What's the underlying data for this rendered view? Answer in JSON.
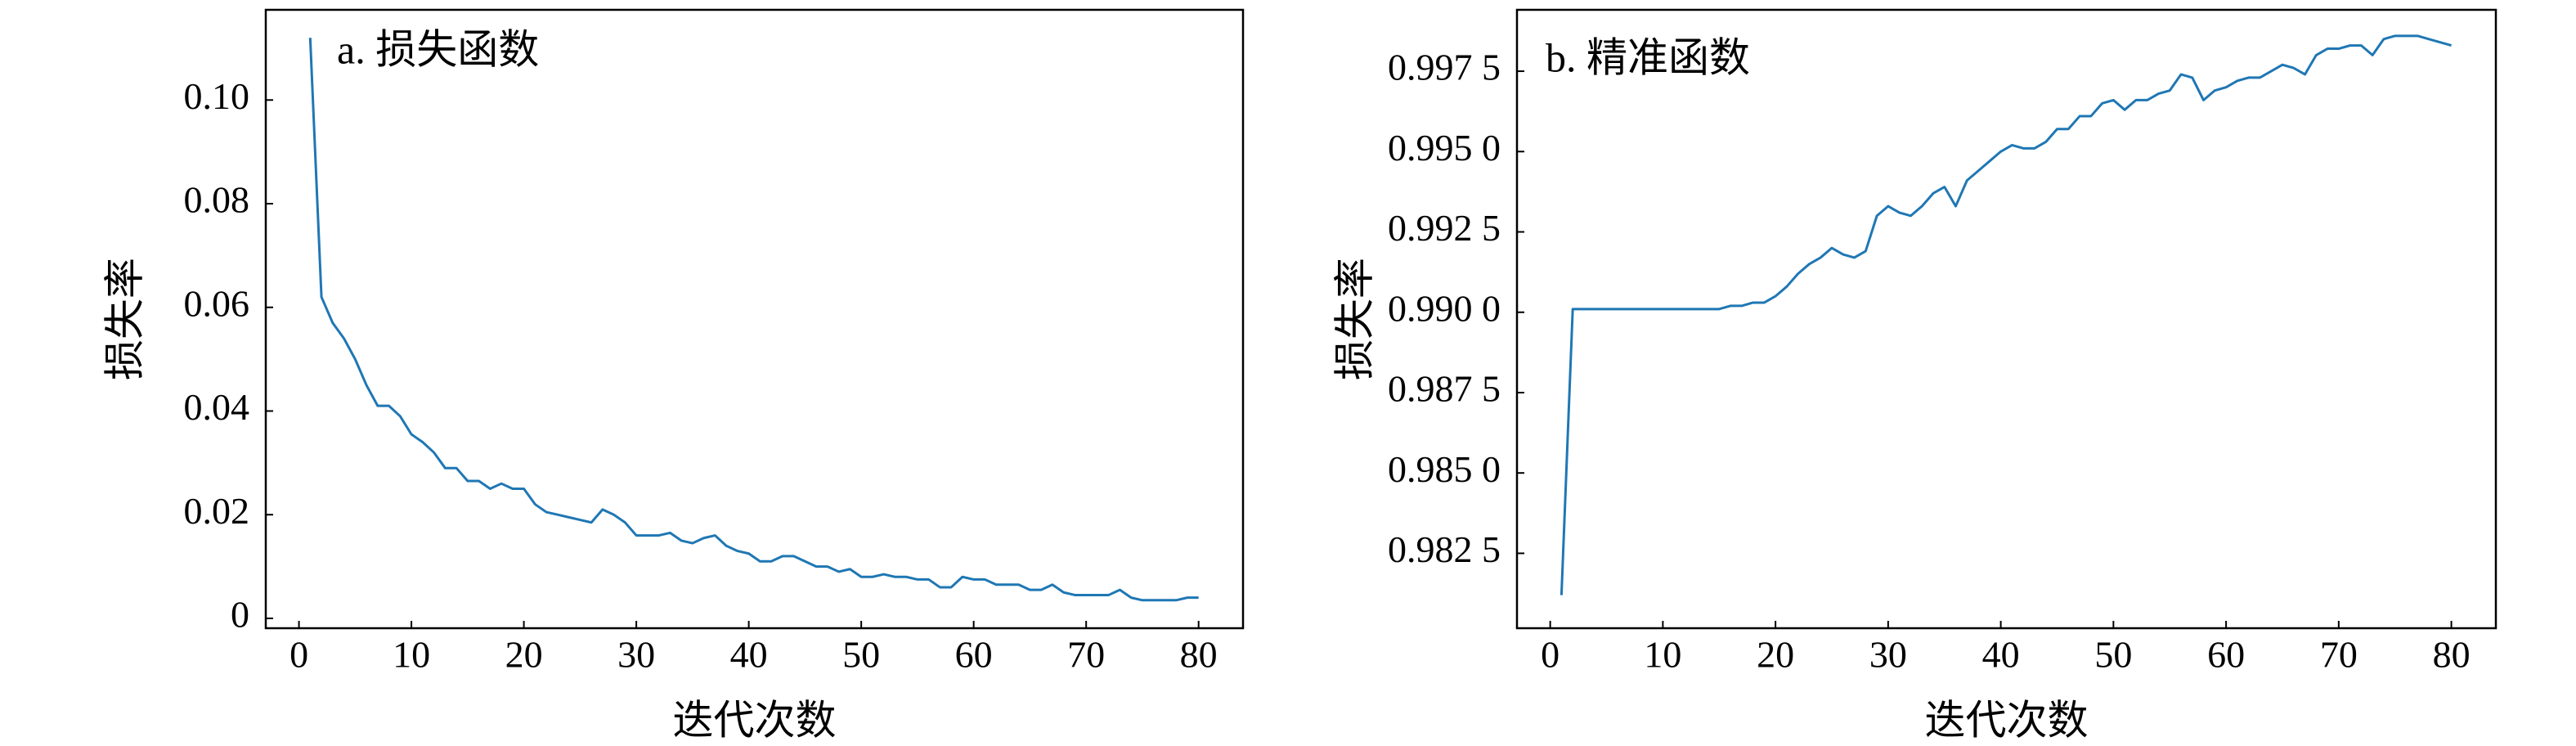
{
  "chart_data": [
    {
      "type": "line",
      "title": "a. 损失函数",
      "xlabel": "迭代次数",
      "ylabel": "损失率",
      "color": "#1f77b4",
      "x": [
        1,
        2,
        3,
        4,
        5,
        6,
        7,
        8,
        9,
        10,
        11,
        12,
        13,
        14,
        15,
        16,
        17,
        18,
        19,
        20,
        21,
        22,
        23,
        24,
        25,
        26,
        27,
        28,
        29,
        30,
        31,
        32,
        33,
        34,
        35,
        36,
        37,
        38,
        39,
        40,
        41,
        42,
        43,
        44,
        45,
        46,
        47,
        48,
        49,
        50,
        51,
        52,
        53,
        54,
        55,
        56,
        57,
        58,
        59,
        60,
        61,
        62,
        63,
        64,
        65,
        66,
        67,
        68,
        69,
        70,
        71,
        72,
        73,
        74,
        75,
        76,
        77,
        78,
        79,
        80
      ],
      "values": [
        0.112,
        0.062,
        0.057,
        0.054,
        0.05,
        0.045,
        0.041,
        0.041,
        0.039,
        0.0355,
        0.034,
        0.032,
        0.029,
        0.029,
        0.0265,
        0.0265,
        0.025,
        0.026,
        0.025,
        0.025,
        0.022,
        0.0205,
        0.02,
        0.0195,
        0.019,
        0.0185,
        0.021,
        0.02,
        0.0185,
        0.016,
        0.016,
        0.016,
        0.0165,
        0.015,
        0.0145,
        0.0155,
        0.016,
        0.014,
        0.013,
        0.0125,
        0.011,
        0.011,
        0.012,
        0.012,
        0.011,
        0.01,
        0.01,
        0.009,
        0.0095,
        0.008,
        0.008,
        0.0085,
        0.008,
        0.008,
        0.0075,
        0.0075,
        0.006,
        0.006,
        0.008,
        0.0075,
        0.0075,
        0.0065,
        0.0065,
        0.0065,
        0.0055,
        0.0055,
        0.0065,
        0.005,
        0.0045,
        0.0045,
        0.0045,
        0.0045,
        0.0055,
        0.004,
        0.0035,
        0.0035,
        0.0035,
        0.0035,
        0.004,
        0.004
      ],
      "xlim": [
        -2.95,
        83.95
      ],
      "xticks": [
        0,
        10,
        20,
        30,
        40,
        50,
        60,
        70,
        80
      ],
      "ylim": [
        -0.0019,
        0.1174
      ],
      "yticks": [
        0,
        0.02,
        0.04,
        0.06,
        0.08,
        {
          "value": 0.1,
          "label": "0.10"
        }
      ]
    },
    {
      "type": "line",
      "title": "b. 精准函数",
      "xlabel": "迭代次数",
      "ylabel": "损失率",
      "color": "#1f77b4",
      "x": [
        1,
        2,
        3,
        4,
        5,
        6,
        7,
        8,
        9,
        10,
        11,
        12,
        13,
        14,
        15,
        16,
        17,
        18,
        19,
        20,
        21,
        22,
        23,
        24,
        25,
        26,
        27,
        28,
        29,
        30,
        31,
        32,
        33,
        34,
        35,
        36,
        37,
        38,
        39,
        40,
        41,
        42,
        43,
        44,
        45,
        46,
        47,
        48,
        49,
        50,
        51,
        52,
        53,
        54,
        55,
        56,
        57,
        58,
        59,
        60,
        61,
        62,
        63,
        64,
        65,
        66,
        67,
        68,
        69,
        70,
        71,
        72,
        73,
        74,
        75,
        76,
        77,
        78,
        79,
        80
      ],
      "values": [
        0.9812,
        0.9901,
        0.9901,
        0.9901,
        0.9901,
        0.9901,
        0.9901,
        0.9901,
        0.9901,
        0.9901,
        0.9901,
        0.9901,
        0.9901,
        0.9901,
        0.9901,
        0.9902,
        0.9902,
        0.9903,
        0.9903,
        0.9905,
        0.9908,
        0.9912,
        0.9915,
        0.9917,
        0.992,
        0.9918,
        0.9917,
        0.9919,
        0.993,
        0.9933,
        0.9931,
        0.993,
        0.9933,
        0.9937,
        0.9939,
        0.9933,
        0.9941,
        0.9944,
        0.9947,
        0.995,
        0.9952,
        0.9951,
        0.9951,
        0.9953,
        0.9957,
        0.9957,
        0.9961,
        0.9961,
        0.9965,
        0.9966,
        0.9963,
        0.9966,
        0.9966,
        0.9968,
        0.9969,
        0.9974,
        0.9973,
        0.9966,
        0.9969,
        0.997,
        0.9972,
        0.9973,
        0.9973,
        0.9975,
        0.9977,
        0.9976,
        0.9974,
        0.998,
        0.9982,
        0.9982,
        0.9983,
        0.9983,
        0.998,
        0.9985,
        0.9986,
        0.9986,
        0.9986,
        0.9985,
        0.9984,
        0.9983
      ],
      "xlim": [
        -2.95,
        83.95
      ],
      "xticks": [
        0,
        10,
        20,
        30,
        40,
        50,
        60,
        70,
        80
      ],
      "ylim": [
        0.98017,
        0.99941
      ],
      "yticks": [
        {
          "value": 0.9825,
          "label": "0.982 5"
        },
        {
          "value": 0.985,
          "label": "0.985 0"
        },
        {
          "value": 0.9875,
          "label": "0.987 5"
        },
        {
          "value": 0.99,
          "label": "0.990 0"
        },
        {
          "value": 0.9925,
          "label": "0.992 5"
        },
        {
          "value": 0.995,
          "label": "0.995 0"
        },
        {
          "value": 0.9975,
          "label": "0.997 5"
        }
      ]
    }
  ]
}
